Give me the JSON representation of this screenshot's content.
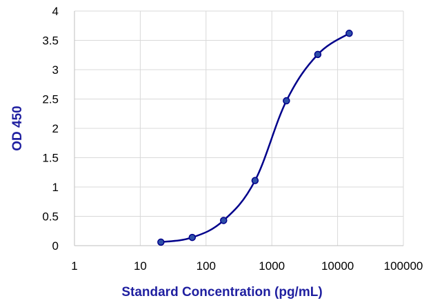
{
  "chart_data": {
    "type": "scatter",
    "title": "",
    "xlabel": "Standard Concentration (pg/mL)",
    "ylabel": "OD 450",
    "x_scale": "log",
    "xlim": [
      1,
      100000
    ],
    "ylim": [
      0,
      4
    ],
    "x_ticks": [
      1,
      10,
      100,
      1000,
      10000,
      100000
    ],
    "x_tick_labels": [
      "1",
      "10",
      "100",
      "1000",
      "10000",
      "100000"
    ],
    "y_ticks": [
      0,
      0.5,
      1,
      1.5,
      2,
      2.5,
      3,
      3.5,
      4
    ],
    "y_tick_labels": [
      "0",
      "0.5",
      "1",
      "1.5",
      "2",
      "2.5",
      "3",
      "3.5",
      "4"
    ],
    "grid": true,
    "legend": "none",
    "series": [
      {
        "x": [
          20.6,
          61.7,
          185,
          556,
          1667,
          5000,
          15000
        ],
        "y": [
          0.06,
          0.14,
          0.43,
          1.11,
          2.47,
          3.26,
          3.62
        ],
        "line": "smooth",
        "color": "#00008B",
        "marker_color": "#2E4FA8"
      }
    ],
    "label_color": "#1F1FA0"
  }
}
